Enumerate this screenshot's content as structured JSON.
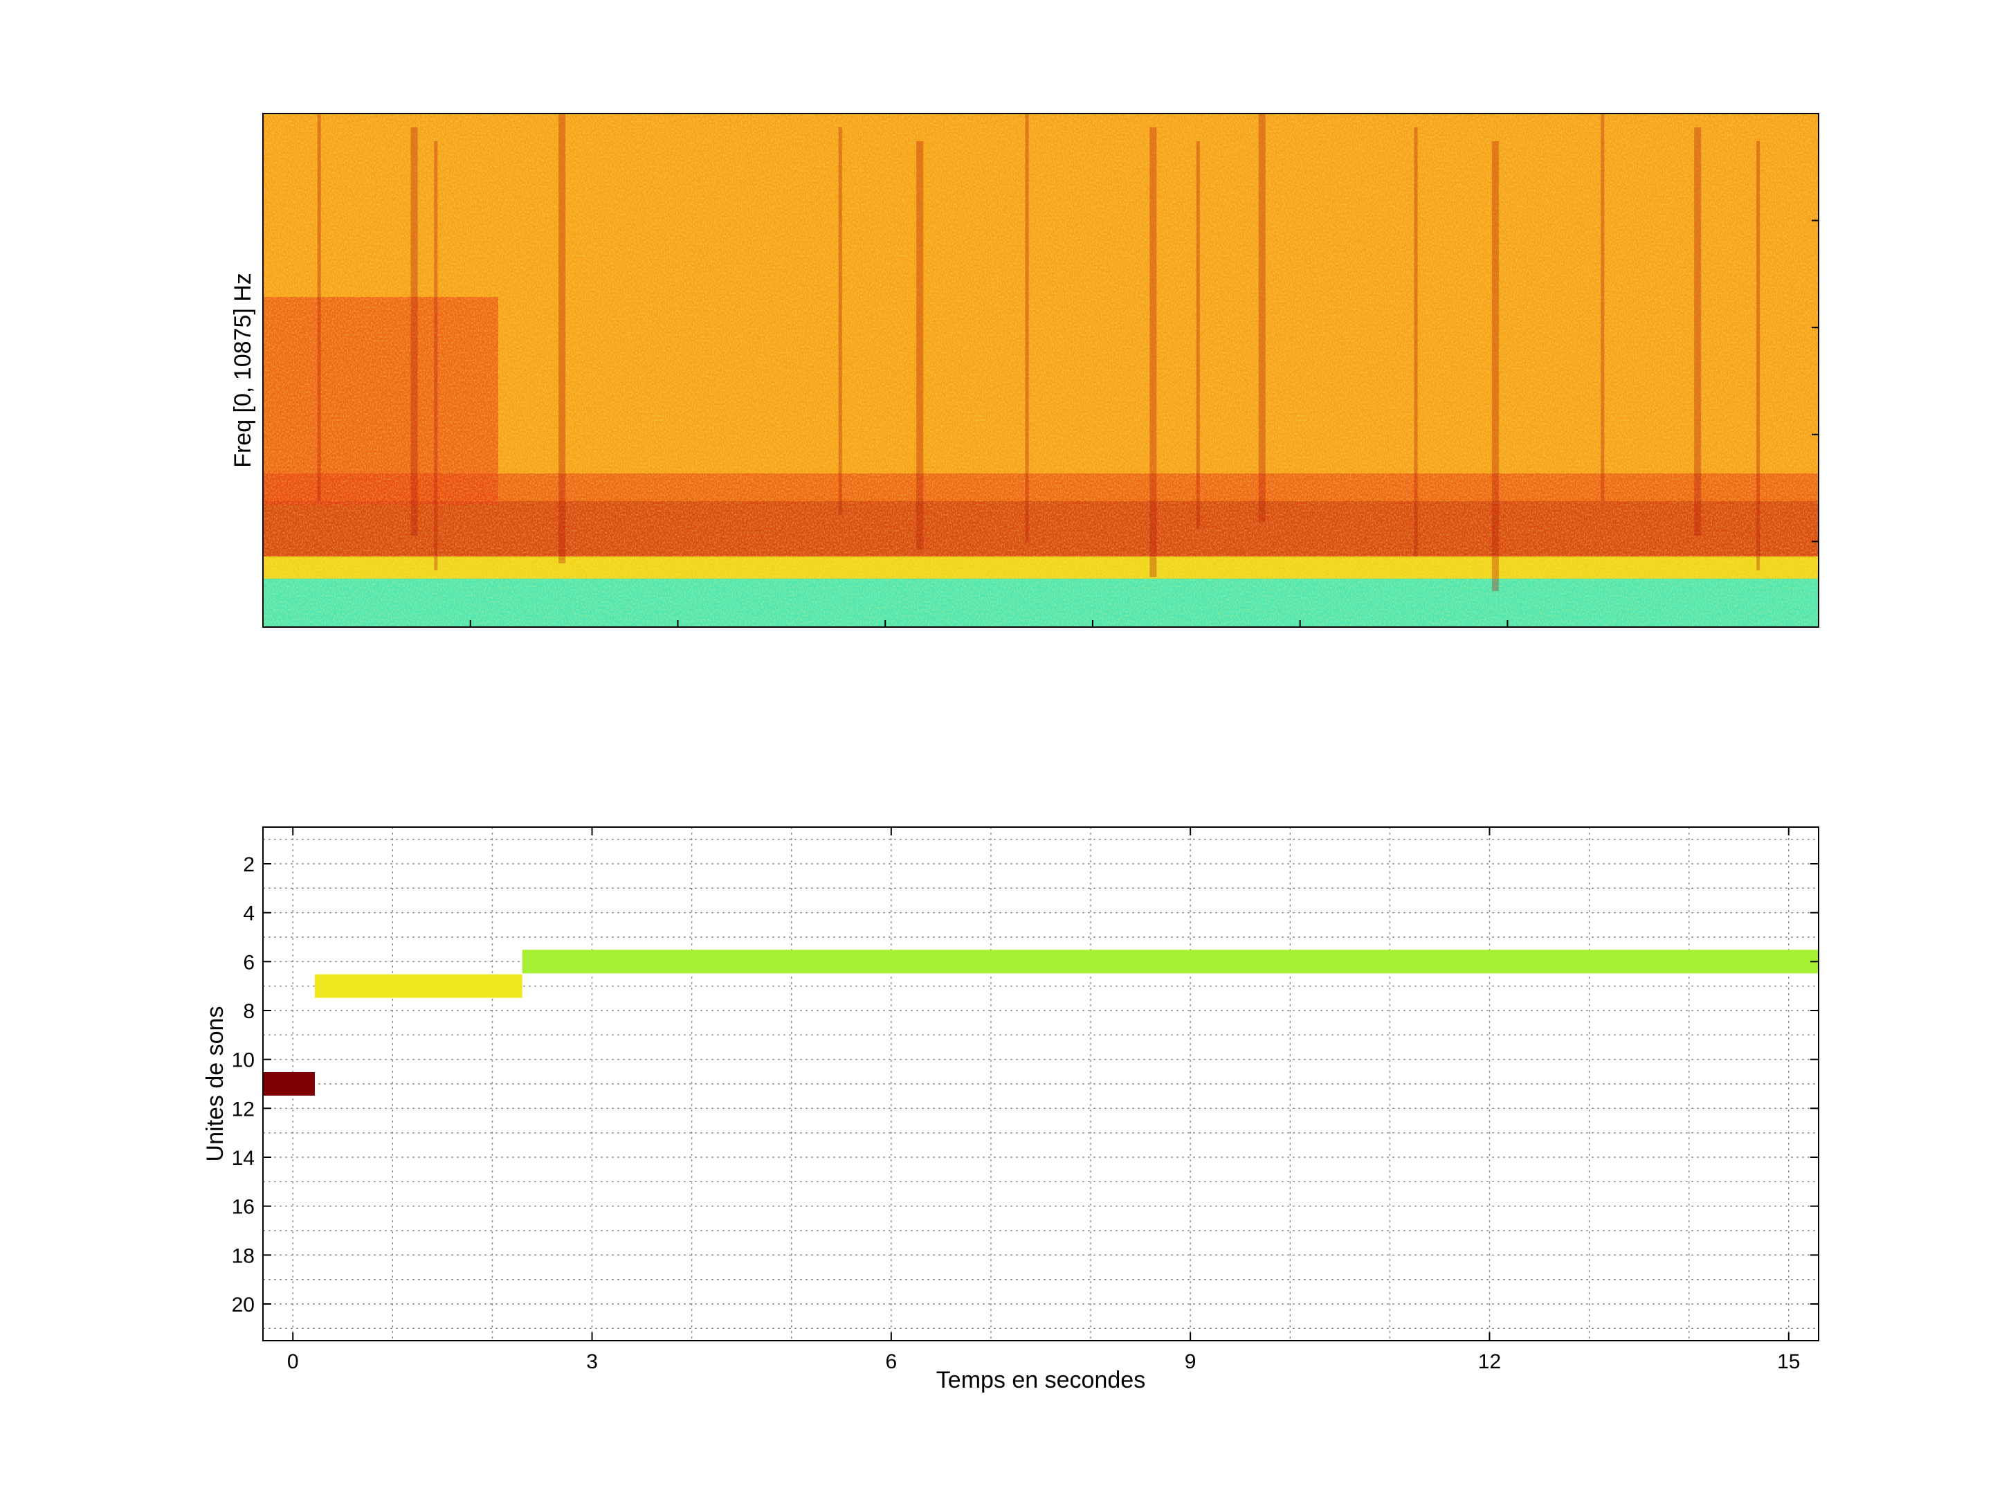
{
  "chart_data": [
    {
      "type": "heatmap",
      "title": "",
      "xlabel": "",
      "ylabel": "Freq [0, 10875] Hz",
      "ylim": [
        0,
        10875
      ],
      "xlim": [
        -0.3,
        15.3
      ],
      "x_ticks_shown": false,
      "y_ticks_shown": false,
      "colormap": "jet",
      "description_of_content": "spectrogram",
      "colors": {
        "low_band": "#4fe6b2",
        "yellow": "#f3e31c",
        "orange": "#f7a21b",
        "red": "#e83a12",
        "dark_red": "#b11409"
      }
    },
    {
      "type": "bar",
      "orientation": "horizontal-intervals",
      "title": "",
      "xlabel": "Temps en secondes",
      "ylabel": "Unites de sons",
      "xlim": [
        -0.3,
        15.3
      ],
      "ylim": [
        21.5,
        0.5
      ],
      "y_reversed": true,
      "grid": true,
      "x_ticks": [
        0,
        3,
        6,
        9,
        12,
        15
      ],
      "y_ticks": [
        2,
        4,
        6,
        8,
        10,
        12,
        14,
        16,
        18,
        20
      ],
      "segments": [
        {
          "unit": 11,
          "start": -0.3,
          "end": 0.22,
          "color": "#7f0000"
        },
        {
          "unit": 7,
          "start": 0.22,
          "end": 2.3,
          "color": "#f0e81c"
        },
        {
          "unit": 6,
          "start": 2.3,
          "end": 15.3,
          "color": "#a5f032"
        }
      ]
    }
  ]
}
